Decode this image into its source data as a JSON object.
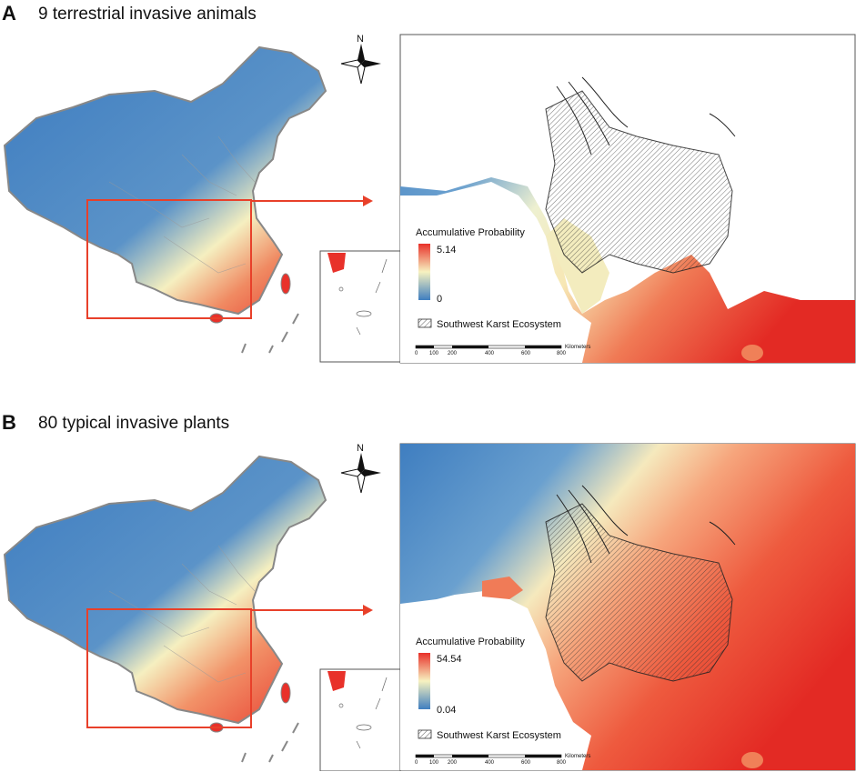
{
  "panels": [
    {
      "letter": "A",
      "title": "9 terrestrial invasive animals",
      "legend_title": "Accumulative Probability",
      "legend_max": "5.14",
      "legend_min": "0",
      "karst_label": "Southwest Karst Ecosystem"
    },
    {
      "letter": "B",
      "title": "80 typical invasive plants",
      "legend_title": "Accumulative Probability",
      "legend_max": "54.54",
      "legend_min": "0.04",
      "karst_label": "Southwest Karst Ecosystem"
    }
  ],
  "north_label": "N",
  "scale_bar": {
    "ticks": [
      "0",
      "100",
      "200",
      "400",
      "600",
      "800"
    ],
    "unit": "Kilometers"
  },
  "colors": {
    "high": "#e8312a",
    "mid": "#f7f2c0",
    "low": "#3f7ec0",
    "frame": "#e8402a"
  }
}
